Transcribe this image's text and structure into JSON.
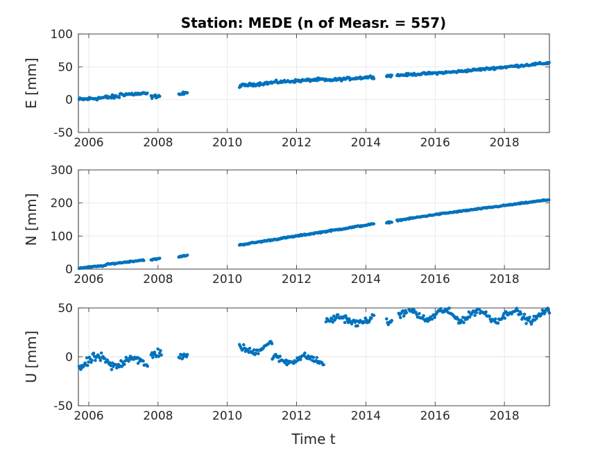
{
  "title": "Station: MEDE (n of Measr. = 557)",
  "xlabel": "Time t",
  "chart_data": [
    {
      "type": "scatter",
      "ylabel": "E [mm]",
      "xlim": [
        2005.7,
        2019.3
      ],
      "ylim": [
        -50,
        100
      ],
      "yticks": [
        -50,
        0,
        50,
        100
      ],
      "xticks": [
        2006,
        2008,
        2010,
        2012,
        2014,
        2016,
        2018
      ],
      "grid": true,
      "color": "#0072bd",
      "segments": [
        {
          "start": 2005.72,
          "end": 2006.9,
          "y0": 0,
          "y1": 5,
          "noise": 2.5
        },
        {
          "start": 2006.9,
          "end": 2007.7,
          "y0": 8,
          "y1": 9,
          "noise": 2.2
        },
        {
          "start": 2007.8,
          "end": 2008.05,
          "y0": 4,
          "y1": 6,
          "noise": 2
        },
        {
          "start": 2008.6,
          "end": 2008.85,
          "y0": 8,
          "y1": 10,
          "noise": 2
        },
        {
          "start": 2010.35,
          "end": 2011.5,
          "y0": 21,
          "y1": 27,
          "noise": 2
        },
        {
          "start": 2011.5,
          "end": 2012.8,
          "y0": 27,
          "y1": 31,
          "noise": 1.8
        },
        {
          "start": 2012.8,
          "end": 2014.25,
          "y0": 29,
          "y1": 35,
          "noise": 1.8
        },
        {
          "start": 2014.6,
          "end": 2014.75,
          "y0": 36,
          "y1": 37,
          "noise": 1.5
        },
        {
          "start": 2014.9,
          "end": 2016.5,
          "y0": 37,
          "y1": 42,
          "noise": 1.5
        },
        {
          "start": 2016.5,
          "end": 2019.3,
          "y0": 42,
          "y1": 56,
          "noise": 1.5
        }
      ]
    },
    {
      "type": "scatter",
      "ylabel": "N [mm]",
      "xlim": [
        2005.7,
        2019.3
      ],
      "ylim": [
        0,
        300
      ],
      "yticks": [
        0,
        100,
        200,
        300
      ],
      "xticks": [
        2006,
        2008,
        2010,
        2012,
        2014,
        2016,
        2018
      ],
      "grid": true,
      "color": "#0072bd",
      "segments": [
        {
          "start": 2005.72,
          "end": 2006.5,
          "y0": 3,
          "y1": 11,
          "noise": 1.5
        },
        {
          "start": 2006.5,
          "end": 2007.6,
          "y0": 14,
          "y1": 28,
          "noise": 1.5
        },
        {
          "start": 2007.8,
          "end": 2008.05,
          "y0": 28,
          "y1": 32,
          "noise": 1.5
        },
        {
          "start": 2008.6,
          "end": 2008.85,
          "y0": 37,
          "y1": 42,
          "noise": 1.5
        },
        {
          "start": 2010.35,
          "end": 2014.25,
          "y0": 73,
          "y1": 137,
          "noise": 1.8
        },
        {
          "start": 2014.6,
          "end": 2014.75,
          "y0": 140,
          "y1": 143,
          "noise": 1.5
        },
        {
          "start": 2014.9,
          "end": 2016.0,
          "y0": 147,
          "y1": 165,
          "noise": 1.5
        },
        {
          "start": 2016.0,
          "end": 2019.3,
          "y0": 165,
          "y1": 210,
          "noise": 1.5
        }
      ]
    },
    {
      "type": "scatter",
      "ylabel": "U [mm]",
      "xlim": [
        2005.7,
        2019.3
      ],
      "ylim": [
        -50,
        50
      ],
      "yticks": [
        -50,
        0,
        50
      ],
      "xticks": [
        2006,
        2008,
        2010,
        2012,
        2014,
        2016,
        2018
      ],
      "grid": true,
      "color": "#0072bd",
      "segments": [
        {
          "start": 2005.72,
          "end": 2007.7,
          "y0": -5,
          "y1": -5,
          "noise": 4,
          "amp": 5,
          "period": 1
        },
        {
          "start": 2007.8,
          "end": 2008.1,
          "y0": 2,
          "y1": 5,
          "noise": 4
        },
        {
          "start": 2008.6,
          "end": 2008.85,
          "y0": 0,
          "y1": 0,
          "noise": 3
        },
        {
          "start": 2010.35,
          "end": 2011.3,
          "y0": 8,
          "y1": 10,
          "noise": 3,
          "amp": 4,
          "period": 1
        },
        {
          "start": 2011.3,
          "end": 2012.8,
          "y0": -2,
          "y1": -3,
          "noise": 3,
          "amp": 3,
          "period": 1
        },
        {
          "start": 2012.85,
          "end": 2014.25,
          "y0": 38,
          "y1": 37,
          "noise": 3,
          "amp": 3,
          "period": 1
        },
        {
          "start": 2014.6,
          "end": 2014.75,
          "y0": 35,
          "y1": 37,
          "noise": 3
        },
        {
          "start": 2014.95,
          "end": 2019.3,
          "y0": 43,
          "y1": 42,
          "noise": 3,
          "amp": 5,
          "period": 1
        }
      ]
    }
  ]
}
